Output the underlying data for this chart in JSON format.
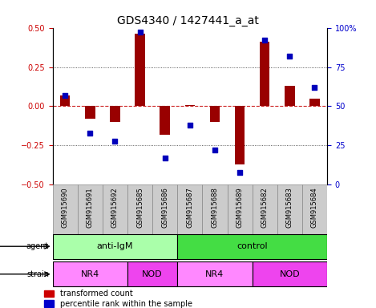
{
  "title": "GDS4340 / 1427441_a_at",
  "samples": [
    "GSM915690",
    "GSM915691",
    "GSM915692",
    "GSM915685",
    "GSM915686",
    "GSM915687",
    "GSM915688",
    "GSM915689",
    "GSM915682",
    "GSM915683",
    "GSM915684"
  ],
  "transformed_count": [
    0.07,
    -0.08,
    -0.1,
    0.46,
    -0.18,
    0.01,
    -0.1,
    -0.37,
    0.41,
    0.13,
    0.05
  ],
  "percentile_rank": [
    57,
    33,
    28,
    97,
    17,
    38,
    22,
    8,
    92,
    82,
    62
  ],
  "ylim_left": [
    -0.5,
    0.5
  ],
  "ylim_right": [
    0,
    100
  ],
  "yticks_left": [
    -0.5,
    -0.25,
    0.0,
    0.25,
    0.5
  ],
  "yticks_right": [
    0,
    25,
    50,
    75,
    100
  ],
  "agent_groups": [
    {
      "label": "anti-IgM",
      "start": 0,
      "end": 5,
      "color": "#AAFFAA"
    },
    {
      "label": "control",
      "start": 5,
      "end": 11,
      "color": "#44DD44"
    }
  ],
  "strain_groups": [
    {
      "label": "NR4",
      "start": 0,
      "end": 3,
      "color": "#FF88FF"
    },
    {
      "label": "NOD",
      "start": 3,
      "end": 5,
      "color": "#EE44EE"
    },
    {
      "label": "NR4",
      "start": 5,
      "end": 8,
      "color": "#FF88FF"
    },
    {
      "label": "NOD",
      "start": 8,
      "end": 11,
      "color": "#EE44EE"
    }
  ],
  "bar_color": "#990000",
  "dot_color": "#0000BB",
  "hline_color": "#CC2222",
  "dot_color_legend": "#0000CC",
  "bar_color_legend": "#CC0000",
  "grid_color": "#333333",
  "bg_color": "#FFFFFF",
  "label_color_left": "#CC0000",
  "label_color_right": "#0000CC",
  "sample_box_color": "#CCCCCC",
  "bar_width": 0.4
}
